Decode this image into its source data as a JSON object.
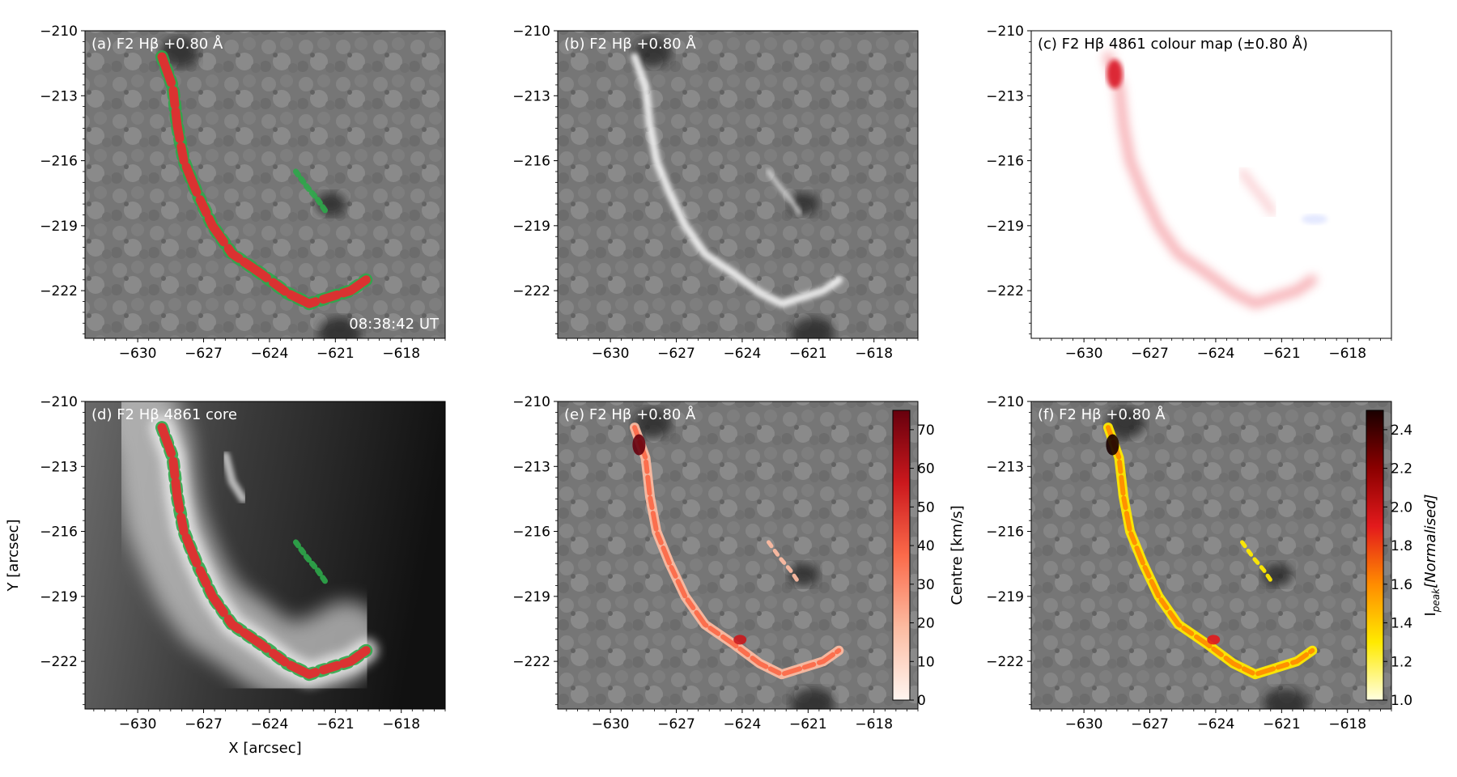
{
  "figure": {
    "shared_xlabel": "X [arcsec]",
    "shared_ylabel": "Y [arcsec]"
  },
  "chart_data": [
    {
      "id": "a",
      "type": "heatmap",
      "title": "(a) F2 Hβ +0.80 Å",
      "background": "wing",
      "overlay": "mask",
      "timestamp": "08:38:42 UT",
      "xlim": [
        -632.4,
        -616.0
      ],
      "ylim": [
        -210,
        -224.2
      ],
      "xticks": [
        -630,
        -627,
        -624,
        -621,
        -618
      ],
      "yticks": [
        -210,
        -213,
        -216,
        -219,
        -222
      ],
      "xlabel": "",
      "ylabel": ""
    },
    {
      "id": "b",
      "type": "heatmap",
      "title": "(b) F2 Hβ +0.80 Å",
      "background": "wing",
      "overlay": "none",
      "xlim": [
        -632.4,
        -616.0
      ],
      "ylim": [
        -210,
        -224.2
      ],
      "xticks": [
        -630,
        -627,
        -624,
        -621,
        -618
      ],
      "yticks": [
        -210,
        -213,
        -216,
        -219,
        -222
      ],
      "xlabel": "",
      "ylabel": ""
    },
    {
      "id": "c",
      "type": "heatmap",
      "title": "(c) F2 Hβ 4861 colour map (±0.80 Å)",
      "background": "white",
      "overlay": "diverging",
      "xlim": [
        -632.4,
        -616.0
      ],
      "ylim": [
        -210,
        -224.2
      ],
      "xticks": [
        -630,
        -627,
        -624,
        -621,
        -618
      ],
      "yticks": [
        -210,
        -213,
        -216,
        -219,
        -222
      ],
      "xlabel": "",
      "ylabel": ""
    },
    {
      "id": "d",
      "type": "heatmap",
      "title": "(d) F2 Hβ 4861 core",
      "background": "core",
      "overlay": "mask",
      "xlim": [
        -632.4,
        -616.0
      ],
      "ylim": [
        -210,
        -224.2
      ],
      "xticks": [
        -630,
        -627,
        -624,
        -621,
        -618
      ],
      "yticks": [
        -210,
        -213,
        -216,
        -219,
        -222
      ],
      "xlabel": "X [arcsec]",
      "ylabel": "Y [arcsec]"
    },
    {
      "id": "e",
      "type": "heatmap",
      "title": "(e) F2 Hβ +0.80 Å",
      "background": "wing",
      "overlay": "velocity",
      "xlim": [
        -632.4,
        -616.0
      ],
      "ylim": [
        -210,
        -224.2
      ],
      "xticks": [
        -630,
        -627,
        -624,
        -621,
        -618
      ],
      "yticks": [
        -210,
        -213,
        -216,
        -219,
        -222
      ],
      "xlabel": "",
      "ylabel": "",
      "colorbar": {
        "label": "Centre [km/s]",
        "min": 0,
        "max": 75,
        "ticks": [
          "0",
          "10",
          "20",
          "30",
          "40",
          "50",
          "60",
          "70"
        ],
        "tick_values": [
          0,
          10,
          20,
          30,
          40,
          50,
          60,
          70
        ],
        "colors": [
          "#fff5f0",
          "#fcbba1",
          "#fb6a4a",
          "#cb181d",
          "#67000d"
        ]
      }
    },
    {
      "id": "f",
      "type": "heatmap",
      "title": "(f) F2 Hβ +0.80 Å",
      "background": "wing",
      "overlay": "intensity",
      "xlim": [
        -632.4,
        -616.0
      ],
      "ylim": [
        -210,
        -224.2
      ],
      "xticks": [
        -630,
        -627,
        -624,
        -621,
        -618
      ],
      "yticks": [
        -210,
        -213,
        -216,
        -219,
        -222
      ],
      "xlabel": "",
      "ylabel": "",
      "colorbar": {
        "label": "I_peak[Normalised]",
        "min": 1.0,
        "max": 2.5,
        "ticks": [
          "1.0",
          "1.2",
          "1.4",
          "1.6",
          "1.8",
          "2.0",
          "2.2",
          "2.4"
        ],
        "tick_values": [
          1.0,
          1.2,
          1.4,
          1.6,
          1.8,
          2.0,
          2.2,
          2.4
        ],
        "colors": [
          "#ffffe0",
          "#ffea00",
          "#ff8c00",
          "#e31a1c",
          "#8b0000",
          "#1a0000"
        ]
      }
    }
  ],
  "ribbon_path": [
    [
      -628.9,
      -211.2
    ],
    [
      -628.4,
      -212.6
    ],
    [
      -628.2,
      -214.4
    ],
    [
      -627.9,
      -216.0
    ],
    [
      -627.3,
      -217.5
    ],
    [
      -626.6,
      -219.0
    ],
    [
      -625.7,
      -220.3
    ],
    [
      -624.4,
      -221.2
    ],
    [
      -623.2,
      -222.1
    ],
    [
      -622.2,
      -222.6
    ],
    [
      -620.3,
      -222.0
    ],
    [
      -619.6,
      -221.5
    ]
  ],
  "secondary_path": [
    [
      -622.8,
      -216.5
    ],
    [
      -622.3,
      -217.2
    ],
    [
      -621.8,
      -217.8
    ],
    [
      -621.4,
      -218.4
    ]
  ],
  "sunspots": [
    [
      -628.1,
      -211.0,
      0.9
    ],
    [
      -621.2,
      -218.0,
      0.7
    ],
    [
      -620.8,
      -224.0,
      1.0
    ]
  ],
  "colors": {
    "mask_red": "#e8282f",
    "mask_green": "#2ea84a",
    "photosphere": "#777777",
    "blue_shift": "#4c6bff"
  }
}
